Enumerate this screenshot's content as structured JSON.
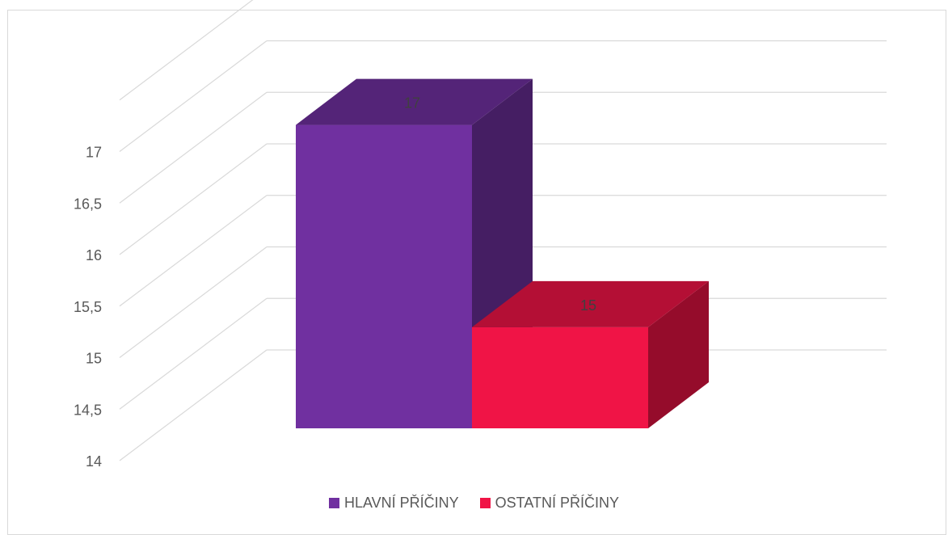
{
  "chart_data": {
    "type": "bar",
    "categories": [
      ""
    ],
    "series": [
      {
        "name": "HLAVNÍ PŘÍČINY",
        "values": [
          17
        ],
        "color": "#7030A0"
      },
      {
        "name": "OSTATNÍ PŘÍČINY",
        "values": [
          15
        ],
        "color": "#F01446"
      }
    ],
    "data_labels": [
      "17",
      "15"
    ],
    "ylim": [
      14,
      17.5
    ],
    "y_ticks": [
      "14",
      "14,5",
      "15",
      "15,5",
      "16",
      "16,5",
      "17"
    ],
    "grid": true,
    "three_d": true,
    "legend_position": "bottom",
    "title": "",
    "xlabel": "",
    "ylabel": ""
  }
}
